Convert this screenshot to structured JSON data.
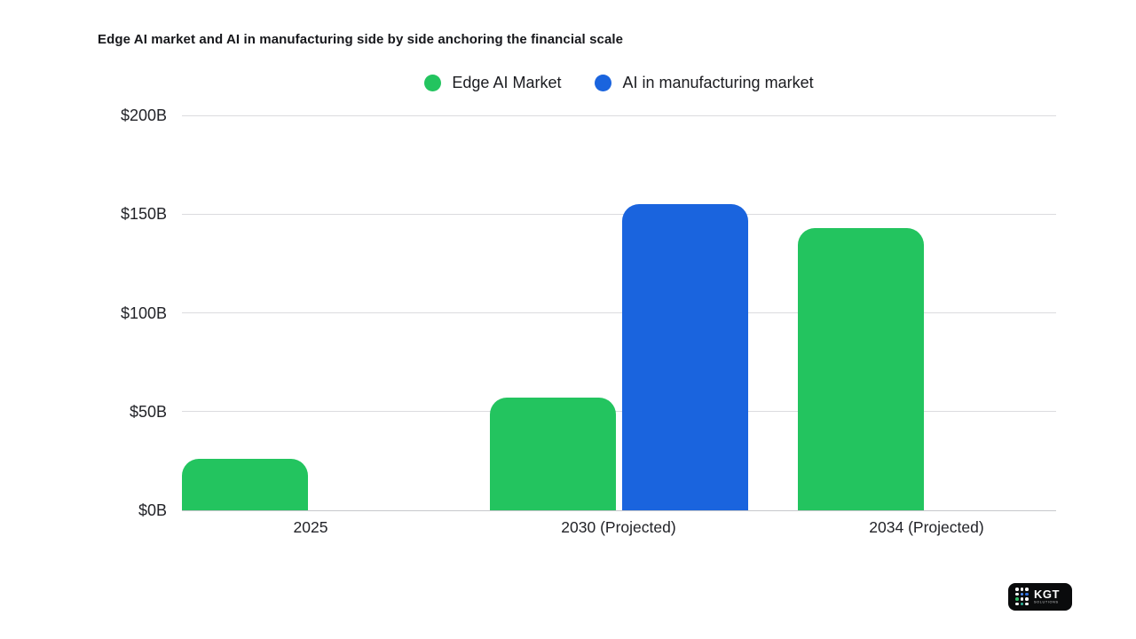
{
  "chart_data": {
    "type": "bar",
    "title": "Edge AI market and AI in manufacturing side by side anchoring the financial scale",
    "categories": [
      "2025",
      "2030 (Projected)",
      "2034 (Projected)"
    ],
    "series": [
      {
        "name": "Edge AI Market",
        "color": "#23c45f",
        "values": [
          26,
          57,
          143
        ]
      },
      {
        "name": "AI in manufacturing market",
        "color": "#1a64de",
        "values": [
          null,
          155,
          null
        ]
      }
    ],
    "xlabel": "",
    "ylabel": "",
    "ylim": [
      0,
      200
    ],
    "y_tick_values": [
      0,
      50,
      100,
      150,
      200
    ],
    "y_tick_labels": [
      "$0B",
      "$50B",
      "$100B",
      "$150B",
      "$200B"
    ],
    "grid": true,
    "legend_position": "top-center",
    "background": "#ffffff",
    "gridline_color": "#dbdbdf"
  },
  "logo": {
    "brand": "KGT",
    "subtext": "SOLUTIONS",
    "background": "#0a0b0c",
    "dot_colors": [
      "#ffffff",
      "#ffffff",
      "#ffffff",
      "#ffffff",
      "#4f8df9",
      "#2f6fe0",
      "#34c06a",
      "#ffffff",
      "#ffffff",
      "#ffffff",
      "#2bb59a",
      "#ffffff"
    ]
  }
}
